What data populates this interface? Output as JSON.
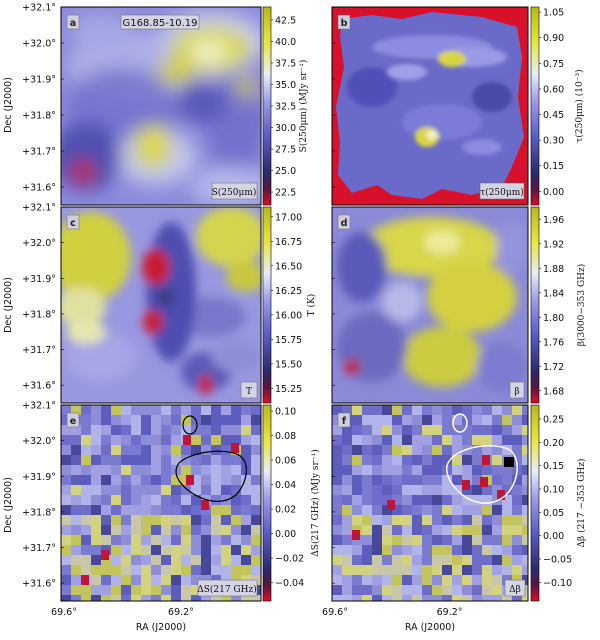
{
  "figure": {
    "x_axis_label": "RA (J2000)",
    "y_axis_label": "Dec (J2000)",
    "dec_ticks": [
      "+32.1°",
      "+32.0°",
      "+31.9°",
      "+31.8°",
      "+31.7°",
      "+31.6°"
    ],
    "ra_ticks": [
      "69.6°",
      "69.2°"
    ],
    "colormap": [
      "#d8102a",
      "#2a2a6a",
      "#5c5cc8",
      "#9a9ae8",
      "#e8ecf8",
      "#e8e640",
      "#b8b81a"
    ]
  },
  "chart_data": [
    {
      "type": "heatmap",
      "panel": "a",
      "title": "G168.85-10.19",
      "tag": "S(250μm)",
      "colorbar_label": "S(250μm) (MJy sr⁻¹)",
      "colorbar_ticks": [
        "42.5",
        "40.0",
        "37.5",
        "35.0",
        "32.5",
        "30.0",
        "27.5",
        "25.0",
        "22.5"
      ],
      "colorbar_range": [
        21,
        44
      ],
      "ra_range": [
        69.6,
        69.2
      ],
      "dec_range": [
        31.55,
        32.1
      ]
    },
    {
      "type": "heatmap",
      "panel": "b",
      "tag": "τ(250μm)",
      "colorbar_label": "τ(250μm) (10⁻³)",
      "colorbar_ticks": [
        "1.05",
        "0.90",
        "0.75",
        "0.60",
        "0.45",
        "0.30",
        "0.15",
        "0.00"
      ],
      "colorbar_range": [
        -0.08,
        1.08
      ]
    },
    {
      "type": "heatmap",
      "panel": "c",
      "tag": "T",
      "colorbar_label": "T (K)",
      "colorbar_ticks": [
        "17.00",
        "16.75",
        "16.50",
        "16.25",
        "16.00",
        "15.75",
        "15.50",
        "15.25"
      ],
      "colorbar_range": [
        15.1,
        17.1
      ]
    },
    {
      "type": "heatmap",
      "panel": "d",
      "tag": "β",
      "colorbar_label": "β(3000−353 GHz)",
      "colorbar_ticks": [
        "1.96",
        "1.92",
        "1.88",
        "1.84",
        "1.80",
        "1.76",
        "1.72",
        "1.68"
      ],
      "colorbar_range": [
        1.66,
        1.98
      ]
    },
    {
      "type": "heatmap",
      "panel": "e",
      "tag": "ΔS(217 GHz)",
      "colorbar_label": "ΔS(217 GHz) (MJy sr⁻¹)",
      "colorbar_ticks": [
        "0.10",
        "0.08",
        "0.06",
        "0.04",
        "0.02",
        "0.00",
        "−0.02",
        "−0.04"
      ],
      "colorbar_range": [
        -0.055,
        0.105
      ]
    },
    {
      "type": "heatmap",
      "panel": "f",
      "tag": "Δβ",
      "colorbar_label": "Δβ (217 −353 GHz)",
      "colorbar_ticks": [
        "0.25",
        "0.20",
        "0.15",
        "0.10",
        "0.05",
        "0.00",
        "−0.05",
        "−0.10"
      ],
      "colorbar_range": [
        -0.14,
        0.28
      ]
    }
  ]
}
